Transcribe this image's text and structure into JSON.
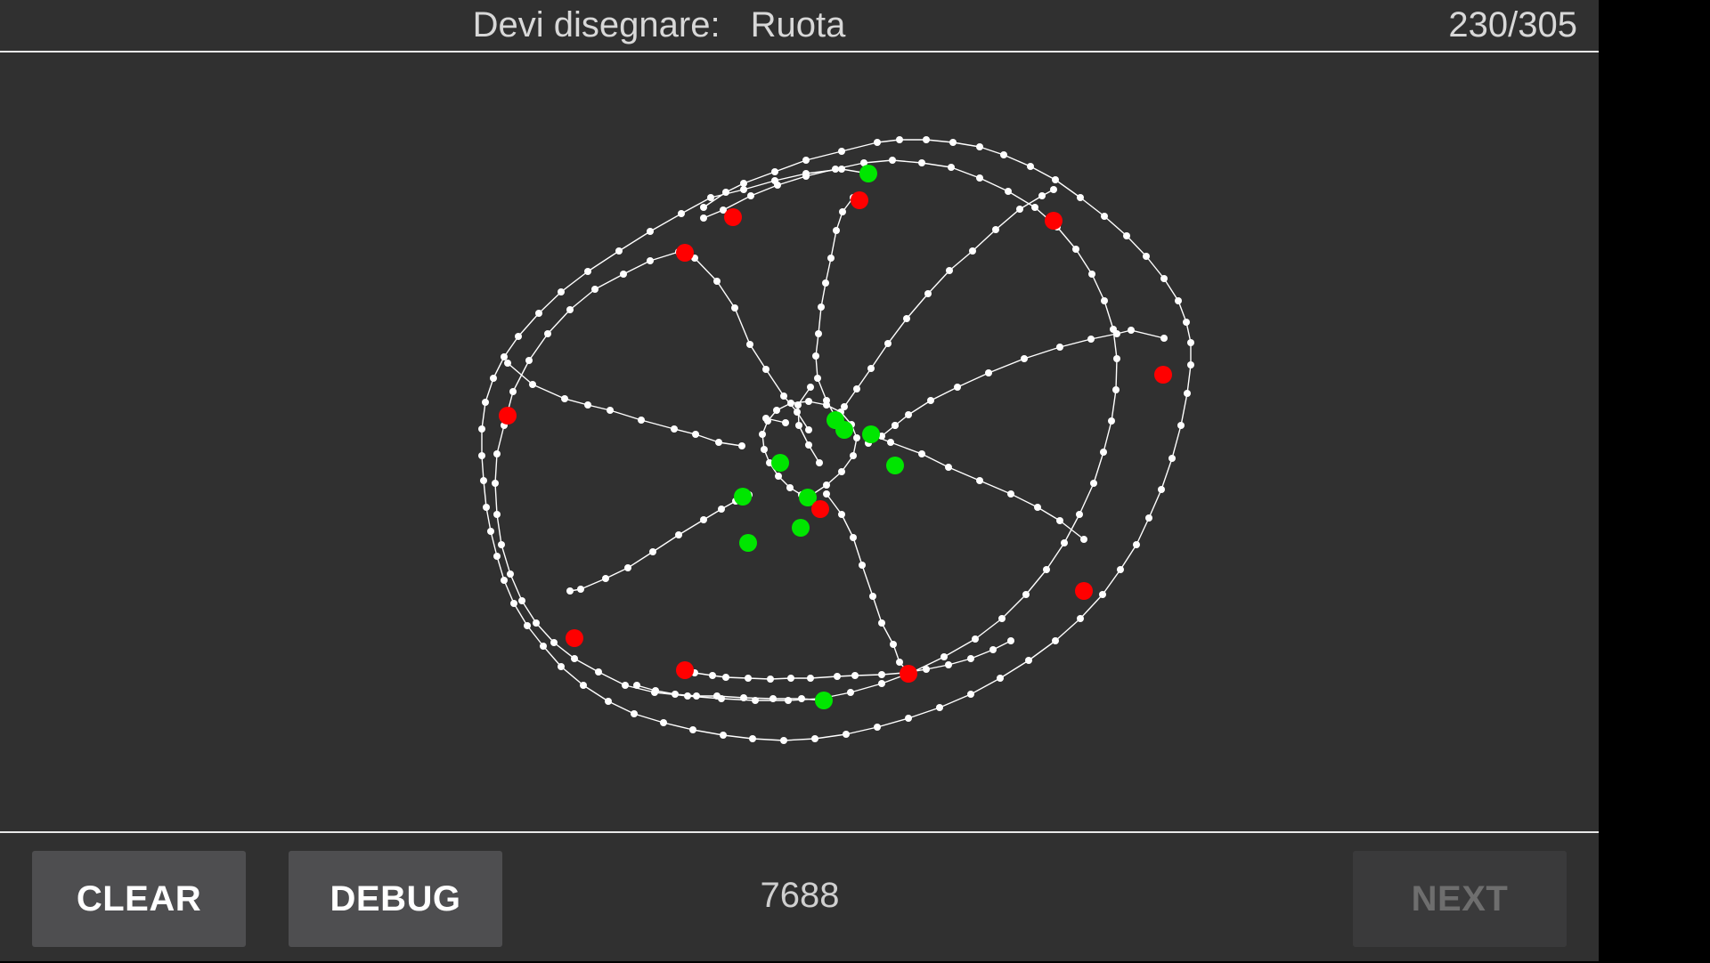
{
  "header": {
    "prompt_label": "Devi disegnare:",
    "word": "Ruota",
    "progress": "230/305"
  },
  "footer": {
    "clear_label": "CLEAR",
    "debug_label": "DEBUG",
    "score": "7688",
    "next_label": "NEXT"
  },
  "colors": {
    "background": "#303030",
    "stroke": "#ffffff",
    "stroke_start": "#00e600",
    "stroke_end": "#ff0000"
  }
}
